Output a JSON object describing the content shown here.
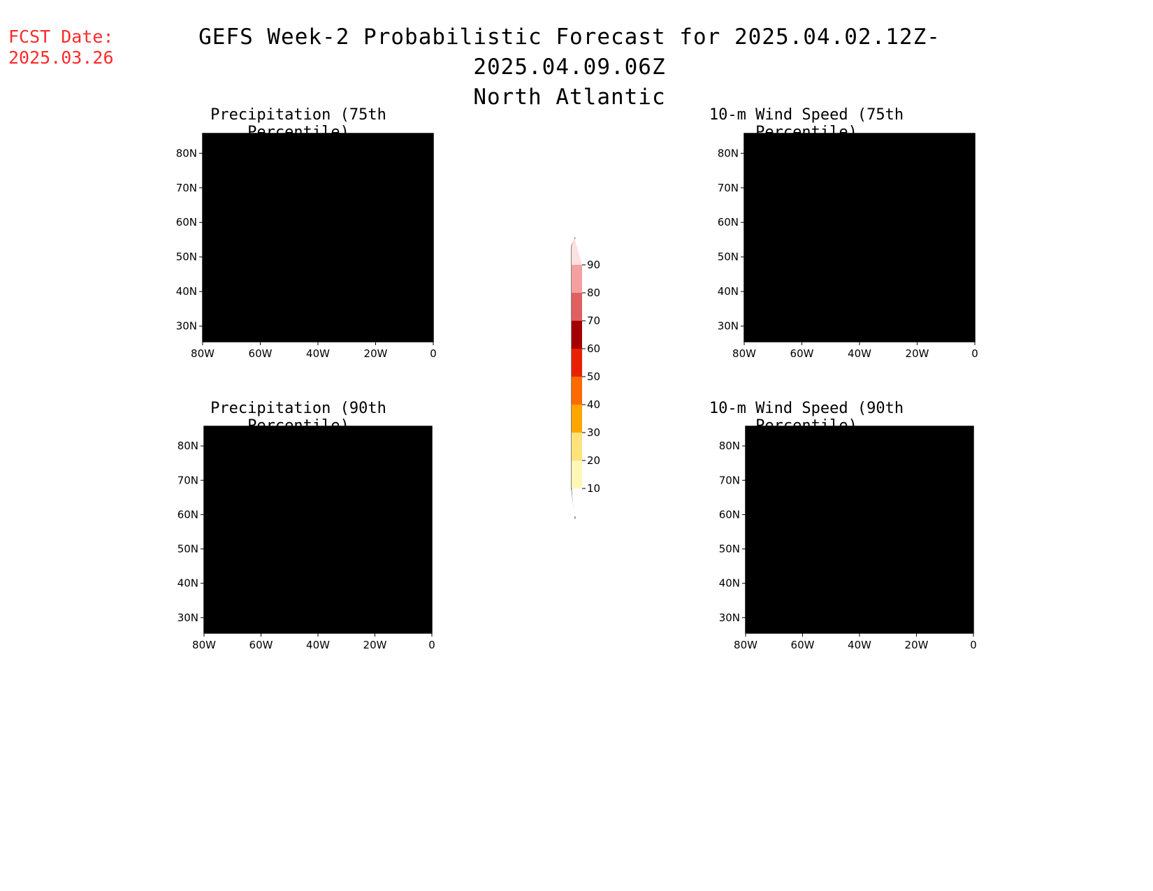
{
  "header": {
    "fcst_line1": "FCST Date:",
    "fcst_line2": "2025.03.26",
    "title_line1": "GEFS Week-2 Probabilistic Forecast for 2025.04.02.12Z-2025.04.09.06Z",
    "title_line2": "North Atlantic"
  },
  "colors": {
    "fcst_text": "#ff2a2a",
    "shade_10_20": "#fff7b8",
    "shade_20_30": "#ffe27a",
    "shade_30_40": "#ffa500",
    "shade_40_50": "#ff6a00",
    "shade_50_60": "#e82000",
    "shade_60_70": "#a50000",
    "shade_70_80": "#e06060",
    "shade_80_90": "#f4a0a0",
    "shade_90_100": "#ffe0e0"
  },
  "panels": [
    {
      "title": "Precipitation (75th Percentile)"
    },
    {
      "title": "10-m Wind Speed (75th Percentile)"
    },
    {
      "title": "Precipitation (90th Percentile)"
    },
    {
      "title": "10-m Wind Speed (90th Percentile)"
    }
  ],
  "axes": {
    "lon_labels": [
      "80W",
      "60W",
      "40W",
      "20W",
      "0"
    ],
    "lat_labels": [
      "80N",
      "70N",
      "60N",
      "50N",
      "40N",
      "30N"
    ]
  },
  "colorbar": {
    "labels": [
      "10",
      "20",
      "30",
      "40",
      "50",
      "60",
      "70",
      "80",
      "90"
    ]
  }
}
